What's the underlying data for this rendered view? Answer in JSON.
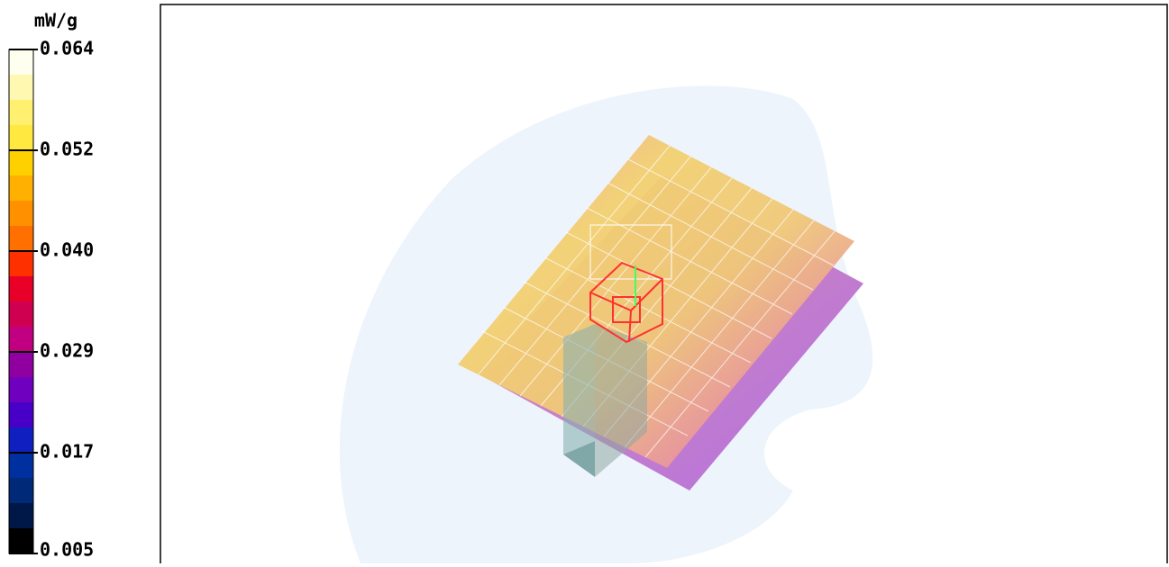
{
  "colorbar": {
    "unit": "mW/g",
    "tick_labels": [
      "0.064",
      "0.052",
      "0.040",
      "0.029",
      "0.017",
      "0.005"
    ]
  }
}
